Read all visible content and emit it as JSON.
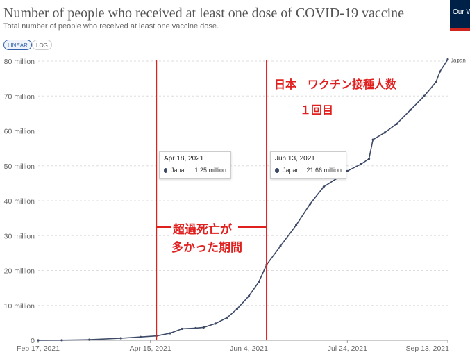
{
  "header": {
    "title": "Number of people who received at least one dose of COVID-19 vaccine",
    "subtitle": "Total number of people who received at least one vaccine dose.",
    "logo_text": "Our W in Da"
  },
  "controls": {
    "linear_label": "LINEAR",
    "log_label": "LOG",
    "active": "LINEAR"
  },
  "colors": {
    "series": "#3d4a68",
    "annotation": "#e0201f"
  },
  "tooltips": [
    {
      "date": "Apr 18, 2021",
      "series": "Japan",
      "value": "1.25 million"
    },
    {
      "date": "Jun 13, 2021",
      "series": "Japan",
      "value": "21.66 million"
    }
  ],
  "annotations": {
    "heading": "日本　ワクチン接種人数",
    "subheading": "１回目",
    "period_line1": "超過死亡が",
    "period_line2": "多かった期間"
  },
  "chart_data": {
    "type": "line",
    "title": "Number of people who received at least one dose of COVID-19 vaccine",
    "subtitle": "Total number of people who received at least one vaccine dose.",
    "x_ticks": [
      "Feb 17, 2021",
      "Apr 15, 2021",
      "Jun 4, 2021",
      "Jul 24, 2021",
      "Sep 13, 2021"
    ],
    "y_ticks": [
      "0",
      "10 million",
      "20 million",
      "30 million",
      "40 million",
      "50 million",
      "60 million",
      "70 million",
      "80 million"
    ],
    "xlim": [
      "2021-02-17",
      "2021-09-13"
    ],
    "ylim": [
      0,
      80000000
    ],
    "grid": true,
    "series": [
      {
        "name": "Japan",
        "points": [
          [
            "2021-02-17",
            0
          ],
          [
            "2021-03-01",
            30000
          ],
          [
            "2021-03-15",
            180000
          ],
          [
            "2021-03-31",
            600000
          ],
          [
            "2021-04-10",
            950000
          ],
          [
            "2021-04-18",
            1250000
          ],
          [
            "2021-04-25",
            2000000
          ],
          [
            "2021-05-01",
            3300000
          ],
          [
            "2021-05-08",
            3500000
          ],
          [
            "2021-05-12",
            3700000
          ],
          [
            "2021-05-18",
            4800000
          ],
          [
            "2021-05-24",
            6500000
          ],
          [
            "2021-05-29",
            9000000
          ],
          [
            "2021-06-04",
            12700000
          ],
          [
            "2021-06-09",
            16700000
          ],
          [
            "2021-06-13",
            21660000
          ],
          [
            "2021-06-20",
            27000000
          ],
          [
            "2021-06-28",
            33000000
          ],
          [
            "2021-07-05",
            39000000
          ],
          [
            "2021-07-12",
            44000000
          ],
          [
            "2021-07-19",
            46500000
          ],
          [
            "2021-07-24",
            48500000
          ],
          [
            "2021-07-31",
            50500000
          ],
          [
            "2021-08-04",
            52000000
          ],
          [
            "2021-08-06",
            57500000
          ],
          [
            "2021-08-12",
            59500000
          ],
          [
            "2021-08-18",
            62000000
          ],
          [
            "2021-08-25",
            66000000
          ],
          [
            "2021-09-01",
            70000000
          ],
          [
            "2021-09-07",
            74000000
          ],
          [
            "2021-09-09",
            77000000
          ],
          [
            "2021-09-13",
            80500000
          ]
        ]
      }
    ]
  }
}
